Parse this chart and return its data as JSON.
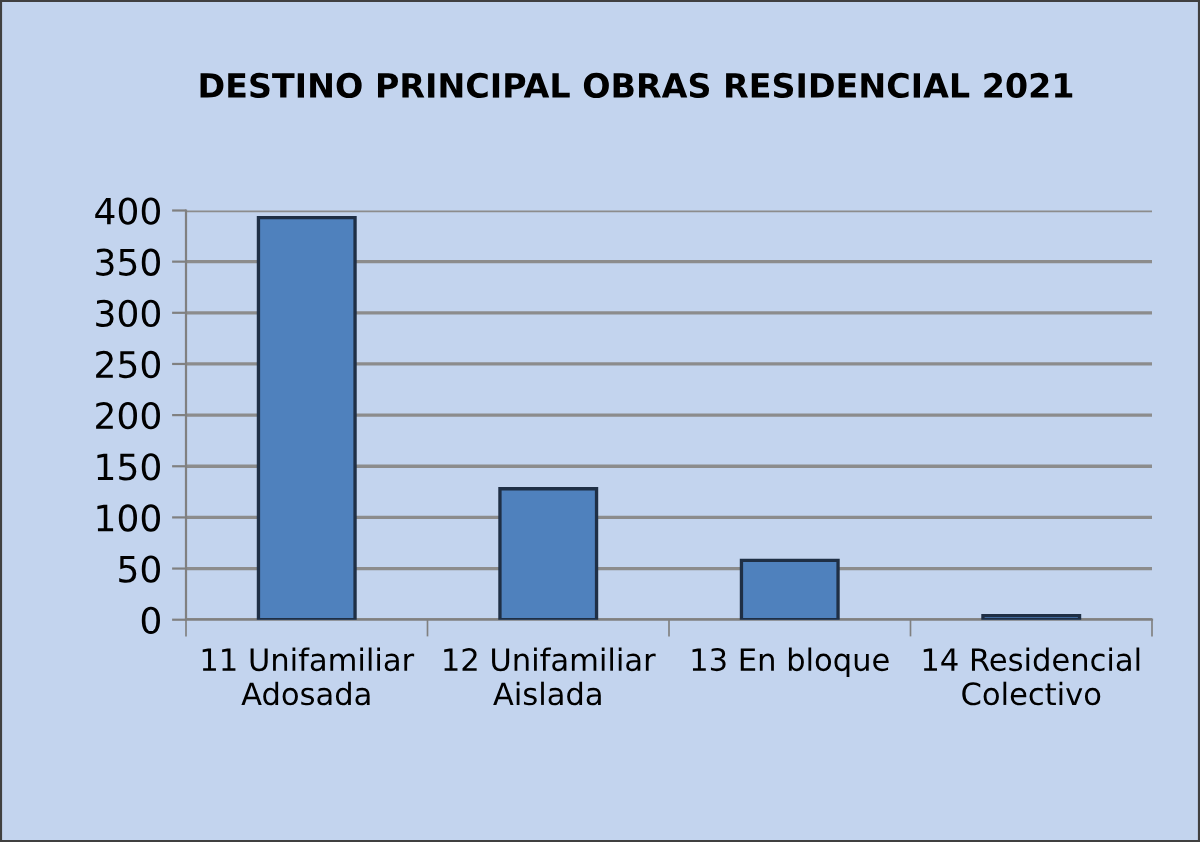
{
  "chart_data": {
    "type": "bar",
    "title": "DESTINO PRINCIPAL OBRAS RESIDENCIAL 2021",
    "categories": [
      "11 Unifamiliar\nAdosada",
      "12 Unifamiliar\nAislada",
      "13 En bloque",
      "14 Residencial\nColectivo"
    ],
    "values": [
      393,
      128,
      58,
      4
    ],
    "color": "#4f81bd",
    "ylim": [
      0,
      400
    ],
    "yticks": [
      0,
      50,
      100,
      150,
      200,
      250,
      300,
      350,
      400
    ],
    "grid": "y"
  }
}
